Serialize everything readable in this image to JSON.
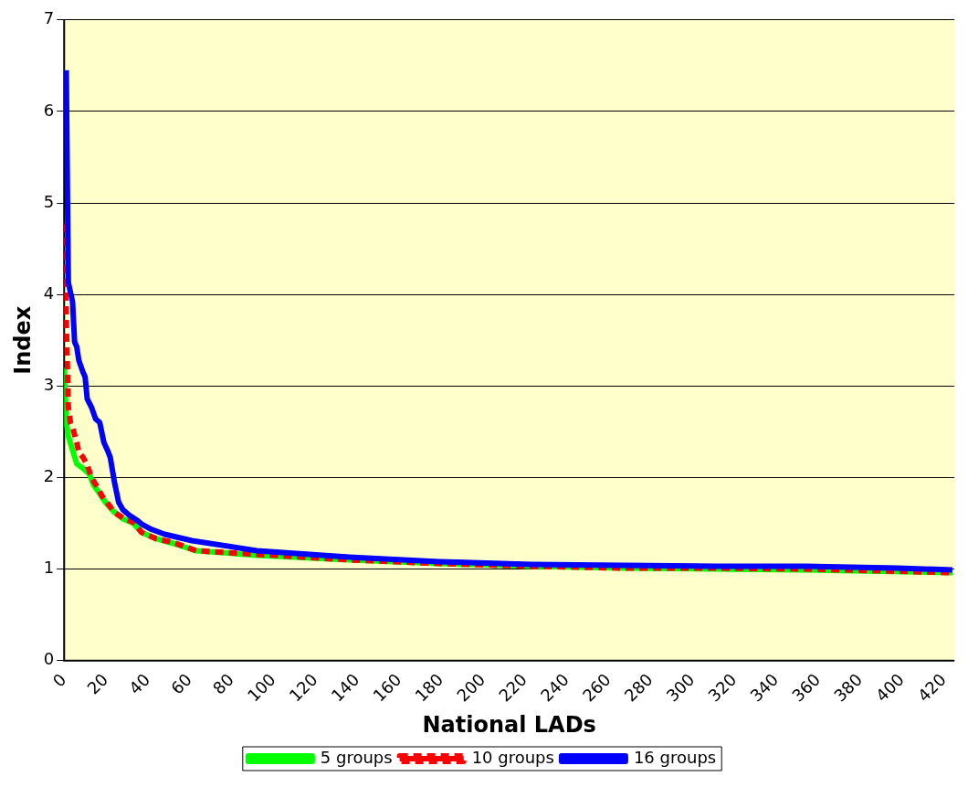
{
  "chart_data": {
    "type": "line",
    "xlabel": "National LADs",
    "ylabel": "Index",
    "xlim": [
      0,
      425
    ],
    "xticks": [
      0,
      20,
      40,
      60,
      80,
      100,
      120,
      140,
      160,
      180,
      200,
      220,
      240,
      260,
      280,
      300,
      320,
      340,
      360,
      380,
      400,
      420
    ],
    "ylim": [
      0,
      7
    ],
    "yticks": [
      0,
      1,
      2,
      3,
      4,
      5,
      6,
      7
    ],
    "grid": "y",
    "legend": "bottom",
    "marker": "none",
    "series": [
      {
        "name": "5 groups",
        "color": "#00ff00",
        "line_style": "solid",
        "x": [
          0,
          1,
          2,
          4,
          6,
          9,
          12,
          14,
          17,
          20,
          24,
          28,
          33,
          37,
          44,
          52,
          63,
          92,
          136,
          179,
          223,
          267,
          311,
          354,
          424
        ],
        "values": [
          3.2,
          2.6,
          2.45,
          2.3,
          2.15,
          2.1,
          2.04,
          1.92,
          1.82,
          1.72,
          1.62,
          1.55,
          1.5,
          1.4,
          1.33,
          1.28,
          1.2,
          1.15,
          1.1,
          1.06,
          1.03,
          1.01,
          1.0,
          0.99,
          0.96
        ]
      },
      {
        "name": "10 groups",
        "color": "#ff0000",
        "line_style": "dashed",
        "x": [
          0,
          0.5,
          1,
          1.5,
          2,
          3,
          4,
          6,
          7,
          9,
          11,
          13,
          16,
          18,
          21,
          24,
          28,
          33,
          37,
          44,
          52,
          63,
          92,
          136,
          179,
          223,
          267,
          311,
          354,
          424
        ],
        "values": [
          4.77,
          4.17,
          3.74,
          3.24,
          2.77,
          2.6,
          2.55,
          2.38,
          2.28,
          2.22,
          2.14,
          2.0,
          1.89,
          1.8,
          1.71,
          1.62,
          1.56,
          1.51,
          1.4,
          1.33,
          1.29,
          1.2,
          1.16,
          1.1,
          1.06,
          1.03,
          1.01,
          1.01,
          1.0,
          0.96
        ]
      },
      {
        "name": "16 groups",
        "color": "#0000ff",
        "line_style": "solid",
        "x": [
          1,
          2,
          4,
          5,
          6,
          7,
          9,
          10,
          11,
          13,
          15,
          17,
          19,
          21,
          22,
          24,
          26,
          28,
          31,
          35,
          37,
          41,
          48,
          61,
          92,
          136,
          179,
          223,
          267,
          311,
          354,
          398,
          424
        ],
        "values": [
          6.45,
          4.13,
          3.92,
          3.48,
          3.43,
          3.28,
          3.15,
          3.1,
          2.86,
          2.77,
          2.64,
          2.6,
          2.38,
          2.28,
          2.22,
          1.95,
          1.73,
          1.65,
          1.59,
          1.53,
          1.49,
          1.44,
          1.38,
          1.31,
          1.2,
          1.13,
          1.08,
          1.05,
          1.04,
          1.03,
          1.03,
          1.01,
          0.99
        ]
      }
    ]
  }
}
